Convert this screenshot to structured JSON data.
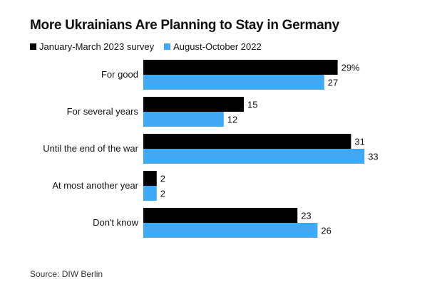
{
  "title": "More Ukrainians Are Planning to Stay in Germany",
  "source": "Source: DIW Berlin",
  "colors": {
    "series_1": "#000000",
    "series_2": "#3fa9f5"
  },
  "chart_data": {
    "type": "bar",
    "orientation": "horizontal",
    "title": "More Ukrainians Are Planning to Stay in Germany",
    "categories": [
      "For good",
      "For several years",
      "Until the end of the war",
      "At most another year",
      "Don't know"
    ],
    "series": [
      {
        "name": "January-March 2023 survey",
        "values": [
          29,
          15,
          31,
          2,
          23
        ],
        "labels": [
          "29%",
          "15",
          "31",
          "2",
          "23"
        ]
      },
      {
        "name": "August-October 2022",
        "values": [
          27,
          12,
          33,
          2,
          26
        ],
        "labels": [
          "27",
          "12",
          "33",
          "2",
          "26"
        ]
      }
    ],
    "value_unit": "%",
    "legend": "top-left",
    "grid": false
  }
}
